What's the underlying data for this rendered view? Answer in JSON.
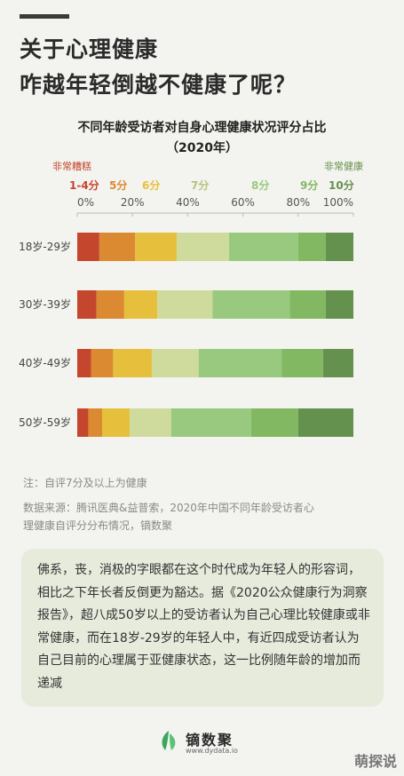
{
  "headline": {
    "line1": "关于心理健康",
    "line2": "咋越年轻倒越不健康了呢？"
  },
  "chart_data": {
    "type": "bar",
    "stacked": true,
    "orientation": "horizontal",
    "title": "不同年龄受访者对自身心理健康状况评分占比",
    "subtitle": "（2020年）",
    "legend_ends": {
      "low": "非常糟糕",
      "high": "非常健康"
    },
    "categories": [
      "18岁-29岁",
      "30岁-39岁",
      "40岁-49岁",
      "50岁-59岁"
    ],
    "series": [
      {
        "name": "1-4分",
        "color": "#c4462d",
        "values": [
          8,
          7,
          5,
          4
        ]
      },
      {
        "name": "5分",
        "color": "#db8a32",
        "values": [
          13,
          10,
          8,
          5
        ]
      },
      {
        "name": "6分",
        "color": "#e6c03c",
        "values": [
          15,
          12,
          14,
          10
        ]
      },
      {
        "name": "7分",
        "color": "#cfdb9c",
        "values": [
          19,
          20,
          17,
          15
        ]
      },
      {
        "name": "8分",
        "color": "#99c97e",
        "values": [
          25,
          28,
          30,
          29
        ]
      },
      {
        "name": "9分",
        "color": "#82b862",
        "values": [
          10,
          13,
          15,
          17
        ]
      },
      {
        "name": "10分",
        "color": "#64914d",
        "values": [
          10,
          10,
          11,
          20
        ]
      }
    ],
    "x_ticks": [
      "0%",
      "20%",
      "40%",
      "60%",
      "80%",
      "100%"
    ],
    "xlim": [
      0,
      100
    ],
    "grid": false
  },
  "note": "注：自评7分及以上为健康",
  "source_line1": "数据来源：腾讯医典&益普索，2020年中国不同年龄受访者心",
  "source_line2": "理健康自评分分布情况，镝数聚",
  "paragraph": "佛系，丧，消极的字眼都在这个时代成为年轻人的形容词，相比之下年长者反倒更为豁达。据《2020公众健康行为洞察报告》，超八成50岁以上的受访者认为自己心理比较健康或非常健康，而在18岁-29岁的年轻人中，有近四成受访者认为自己目前的心理属于亚健康状态，这一比例随年龄的增加而递减",
  "logo": {
    "name": "镝数聚",
    "url": "www.dydata.io",
    "icon": "leaf-icon",
    "color": "#3aa75c"
  },
  "watermark": "萌探说"
}
